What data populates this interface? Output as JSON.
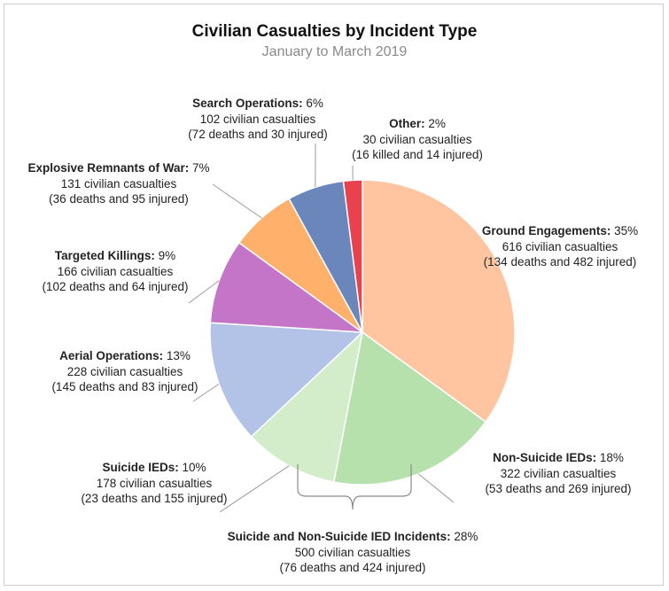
{
  "chart_data": {
    "type": "pie",
    "title": "Civilian Casualties by Incident Type",
    "subtitle": "January to March 2019",
    "slices": [
      {
        "name": "Ground Engagements",
        "pct": "35%",
        "value": 35,
        "line1": "616 civilian casualties",
        "line2": "(134 deaths and 482 injured)",
        "color": "#ffc4a0"
      },
      {
        "name": "Non-Suicide IEDs",
        "pct": "18%",
        "value": 18,
        "line1": "322 civilian casualties",
        "line2": "(53 deaths and 269 injured)",
        "color": "#b6e1ad"
      },
      {
        "name": "Suicide IEDs",
        "pct": "10%",
        "value": 10,
        "line1": "178 civilian casualties",
        "line2": "(23 deaths and 155 injured)",
        "color": "#d3ecc9"
      },
      {
        "name": "Aerial Operations",
        "pct": "13%",
        "value": 13,
        "line1": "228 civilian casualties",
        "line2": "(145 deaths and 83 injured)",
        "color": "#b3c3e7"
      },
      {
        "name": "Targeted Killings",
        "pct": "9%",
        "value": 9,
        "line1": "166 civilian casualties",
        "line2": "(102 deaths and 64 injured)",
        "color": "#c575c7"
      },
      {
        "name": "Explosive Remnants of War",
        "pct": "7%",
        "value": 7,
        "line1": "131 civilian casualties",
        "line2": "(36 deaths and 95 injured)",
        "color": "#ffb06b"
      },
      {
        "name": "Search Operations",
        "pct": "6%",
        "value": 6,
        "line1": "102 civilian casualties",
        "line2": "(72 deaths and 30 injured)",
        "color": "#6a86bb"
      },
      {
        "name": "Other",
        "pct": "2%",
        "value": 2,
        "line1": "30 civilian casualties",
        "line2": "(16 killed and 14 injured)",
        "color": "#e8424f"
      }
    ],
    "group_annotation": {
      "name": "Suicide and Non-Suicide IED Incidents",
      "pct": "28%",
      "line1": "500 civilian casualties",
      "line2": "(76 deaths and 424 injured)"
    }
  }
}
